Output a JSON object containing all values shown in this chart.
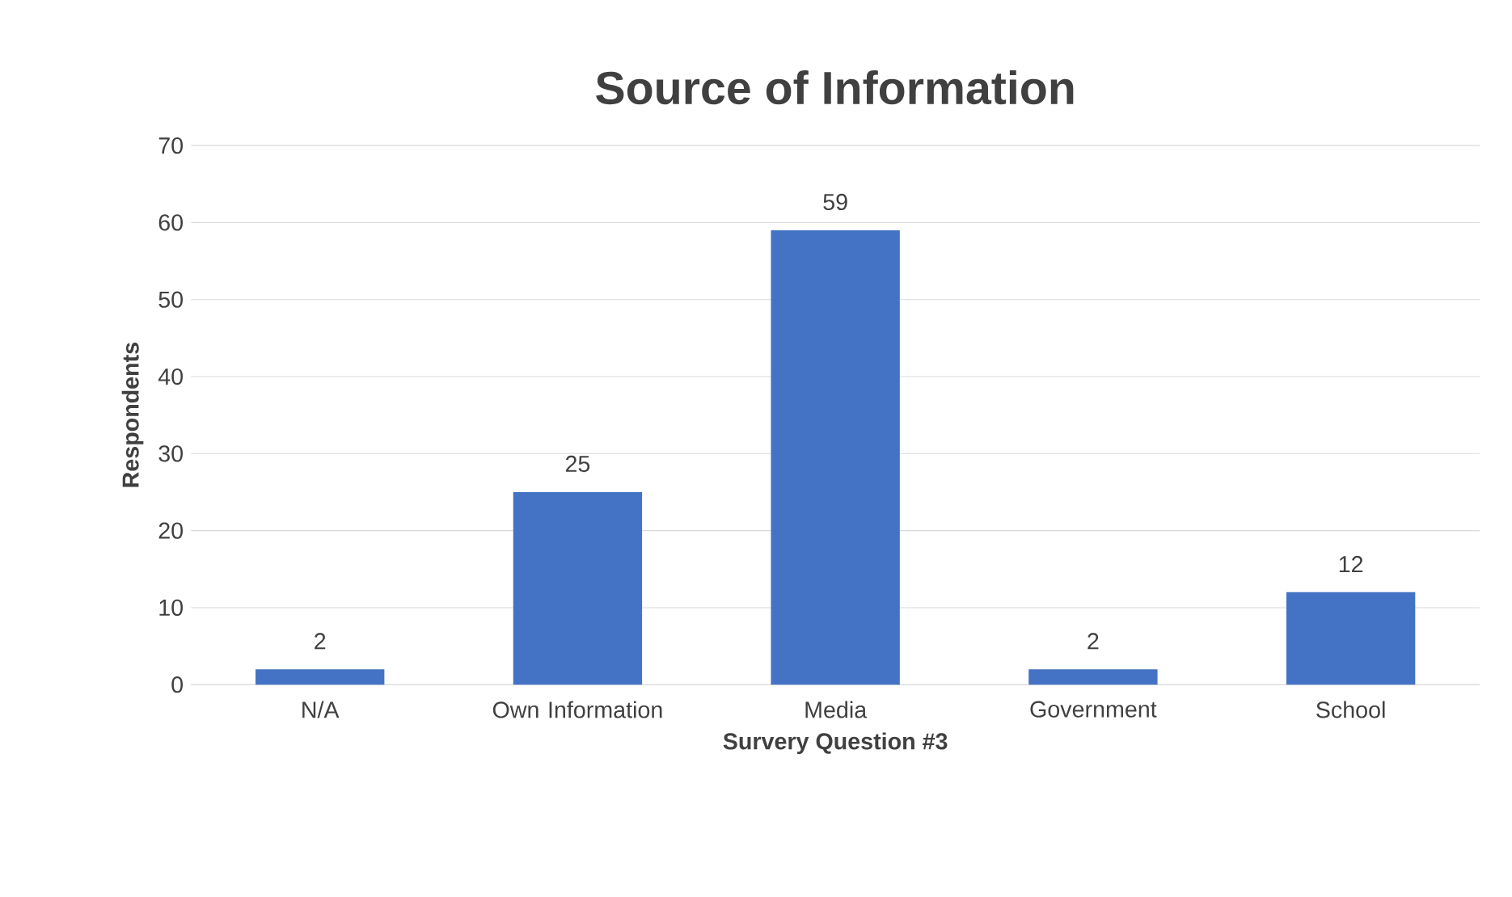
{
  "chart_data": {
    "type": "bar",
    "title": "Source of Information",
    "xlabel": "Survery Question #3",
    "ylabel": "Respondents",
    "categories": [
      "N/A",
      "Own Information",
      "Media",
      "Government",
      "School"
    ],
    "values": [
      2,
      25,
      59,
      2,
      12
    ],
    "color": "#4472c4",
    "ylim": [
      0,
      70
    ],
    "yticks": [
      0,
      10,
      20,
      30,
      40,
      50,
      60,
      70
    ],
    "grid": "y",
    "data_labels": true
  }
}
